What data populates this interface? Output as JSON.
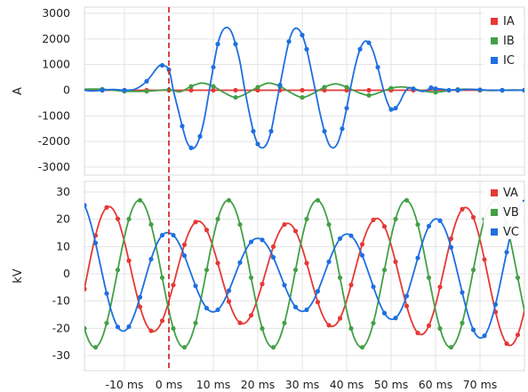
{
  "chart_data": [
    {
      "type": "line",
      "ylabel": "A",
      "ylim": [
        -3000,
        3000
      ],
      "yticks": [
        3000,
        2000,
        1000,
        0,
        -1000,
        -2000,
        -3000
      ],
      "xlim": [
        -19,
        80
      ],
      "grid": true,
      "legend": "top-right",
      "series": [
        {
          "name": "IA",
          "color": "#e53935",
          "x": [
            -20,
            -15,
            -10,
            -5,
            0,
            5,
            10,
            15,
            20,
            25,
            30,
            35,
            40,
            45,
            50,
            55,
            60,
            65,
            70,
            75,
            80
          ],
          "y": [
            0,
            0,
            0,
            0,
            0,
            0,
            0,
            0,
            0,
            0,
            0,
            0,
            0,
            0,
            0,
            0,
            0,
            0,
            0,
            0,
            0
          ]
        },
        {
          "name": "IB",
          "color": "#43a047",
          "x": [
            -20,
            -15,
            -10,
            -5,
            0,
            2.5,
            5,
            7.5,
            10,
            12.5,
            15,
            17.5,
            20,
            22.5,
            25,
            27.5,
            30,
            32.5,
            35,
            37.5,
            40,
            42.5,
            45,
            47.5,
            50,
            52.5,
            55,
            57.5,
            60,
            62.5,
            65,
            67.5,
            70,
            72.5,
            75,
            77.5,
            80
          ],
          "y": [
            40,
            40,
            -40,
            -40,
            20,
            -60,
            150,
            280,
            150,
            -100,
            -280,
            -120,
            120,
            280,
            150,
            -100,
            -280,
            -120,
            120,
            250,
            120,
            -80,
            -200,
            -80,
            80,
            130,
            60,
            -40,
            -80,
            -30,
            30,
            40,
            10,
            -10,
            0,
            10,
            0
          ]
        },
        {
          "name": "IC",
          "color": "#1e6fe0",
          "x": [
            -20,
            -17.5,
            -15,
            -12.5,
            -10,
            -7.5,
            -5,
            -2.5,
            -1.5,
            0,
            1,
            2,
            3,
            4,
            5,
            6,
            7,
            8,
            9,
            10,
            11,
            12,
            13,
            14,
            15,
            16,
            17,
            18,
            19,
            20,
            21,
            22,
            23,
            24,
            25,
            26,
            27,
            28,
            29,
            30,
            31,
            32,
            33,
            34,
            35,
            36,
            37,
            38,
            39,
            40,
            41,
            42,
            43,
            44,
            45,
            46,
            47,
            48,
            49,
            50,
            51,
            52,
            53,
            54,
            55,
            56,
            57,
            58,
            59,
            60,
            61,
            62,
            63,
            64,
            65,
            67.5,
            70,
            72.5,
            75,
            77.5,
            80
          ],
          "y": [
            30,
            -30,
            0,
            30,
            0,
            50,
            350,
            900,
            970,
            800,
            0,
            -700,
            -1400,
            -2000,
            -2250,
            -2200,
            -1800,
            -1100,
            -100,
            900,
            1800,
            2300,
            2450,
            2300,
            1800,
            1100,
            100,
            -800,
            -1600,
            -2100,
            -2250,
            -2100,
            -1600,
            -700,
            200,
            1100,
            1900,
            2350,
            2400,
            2150,
            1600,
            800,
            -50,
            -900,
            -1600,
            -2100,
            -2250,
            -2050,
            -1500,
            -700,
            200,
            1000,
            1600,
            1900,
            1850,
            1500,
            900,
            200,
            -400,
            -750,
            -700,
            -450,
            -100,
            100,
            50,
            0,
            -50,
            0,
            100,
            60,
            50,
            30,
            0,
            20,
            0,
            40,
            20,
            0,
            0,
            0,
            0
          ]
        }
      ]
    },
    {
      "type": "line",
      "ylabel": "kV",
      "ylim": [
        -33,
        30
      ],
      "yticks": [
        30,
        20,
        10,
        0,
        -10,
        -20,
        -30
      ],
      "xlim": [
        -19,
        80
      ],
      "xticks": [
        -10,
        0,
        10,
        20,
        30,
        40,
        50,
        60,
        70
      ],
      "xtick_labels": [
        "-10 ms",
        "0 ms",
        "10 ms",
        "20 ms",
        "30 ms",
        "40 ms",
        "50 ms",
        "60 ms",
        "70 ms"
      ],
      "grid": true,
      "legend": "top-right",
      "series": [
        {
          "name": "VA",
          "color": "#e53935",
          "amp": [
            27,
            20,
            18,
            20,
            27
          ],
          "amp_t": [
            -20,
            0,
            20,
            45,
            80
          ],
          "phase": -120
        },
        {
          "name": "VB",
          "color": "#43a047",
          "amp": [
            27,
            27,
            27,
            27,
            27
          ],
          "amp_t": [
            -20,
            0,
            20,
            45,
            80
          ],
          "phase": 120
        },
        {
          "name": "VC",
          "color": "#1e6fe0",
          "amp": [
            27,
            15,
            13,
            15,
            27
          ],
          "amp_t": [
            -20,
            0,
            20,
            45,
            80
          ],
          "phase": 0
        }
      ],
      "period_ms": 20
    }
  ],
  "marker": {
    "x": 0,
    "color": "#d32f2f"
  }
}
